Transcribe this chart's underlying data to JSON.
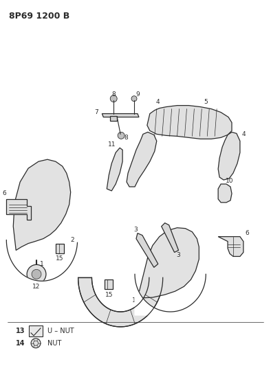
{
  "title": "8P69 1200 B",
  "bg_color": "#ffffff",
  "line_color": "#2a2a2a",
  "fill_color": "#e8e8e8",
  "lw": 0.9
}
